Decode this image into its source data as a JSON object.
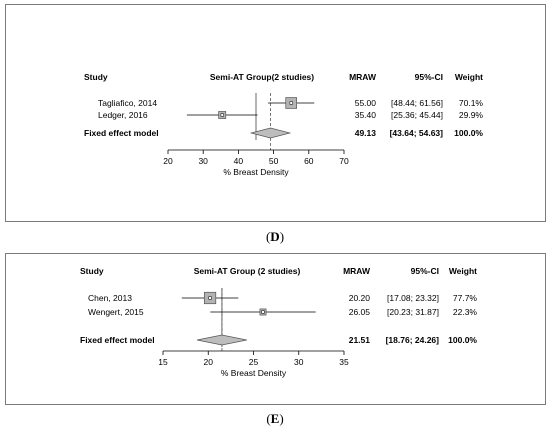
{
  "chart_data": [
    {
      "type": "forest",
      "panel_label": "D",
      "columns": {
        "study": "Study",
        "group": "Semi-AT Group(2 studies)",
        "mraw": "MRAW",
        "ci": "95%-CI",
        "weight": "Weight"
      },
      "studies": [
        {
          "name": "Tagliafico, 2014",
          "mean": 55.0,
          "lower": 48.44,
          "upper": 61.56,
          "mraw": "55.00",
          "ci": "[48.44; 61.56]",
          "weight": "70.1%",
          "weight_value": 70.1
        },
        {
          "name": "Ledger, 2016",
          "mean": 35.4,
          "lower": 25.36,
          "upper": 45.44,
          "mraw": "35.40",
          "ci": "[25.36; 45.44]",
          "weight": "29.9%",
          "weight_value": 29.9
        }
      ],
      "summary": {
        "name": "Fixed effect model",
        "mean": 49.13,
        "lower": 43.64,
        "upper": 54.63,
        "mraw": "49.13",
        "ci": "[43.64; 54.63]",
        "weight": "100.0%"
      },
      "xlabel": "% Breast Density",
      "xlim": [
        20,
        70
      ],
      "xticks": [
        "20",
        "30",
        "40",
        "50",
        "60",
        "70"
      ]
    },
    {
      "type": "forest",
      "panel_label": "E",
      "columns": {
        "study": "Study",
        "group": "Semi-AT Group (2 studies)",
        "mraw": "MRAW",
        "ci": "95%-CI",
        "weight": "Weight"
      },
      "studies": [
        {
          "name": "Chen, 2013",
          "mean": 20.2,
          "lower": 17.08,
          "upper": 23.32,
          "mraw": "20.20",
          "ci": "[17.08; 23.32]",
          "weight": "77.7%",
          "weight_value": 77.7
        },
        {
          "name": "Wengert, 2015",
          "mean": 26.05,
          "lower": 20.23,
          "upper": 31.87,
          "mraw": "26.05",
          "ci": "[20.23; 31.87]",
          "weight": "22.3%",
          "weight_value": 22.3
        }
      ],
      "summary": {
        "name": "Fixed effect model",
        "mean": 21.51,
        "lower": 18.76,
        "upper": 24.26,
        "mraw": "21.51",
        "ci": "[18.76; 24.26]",
        "weight": "100.0%"
      },
      "xlabel": "% Breast Density",
      "xlim": [
        15,
        35
      ],
      "xticks": [
        "15",
        "20",
        "25",
        "30",
        "35"
      ]
    }
  ]
}
